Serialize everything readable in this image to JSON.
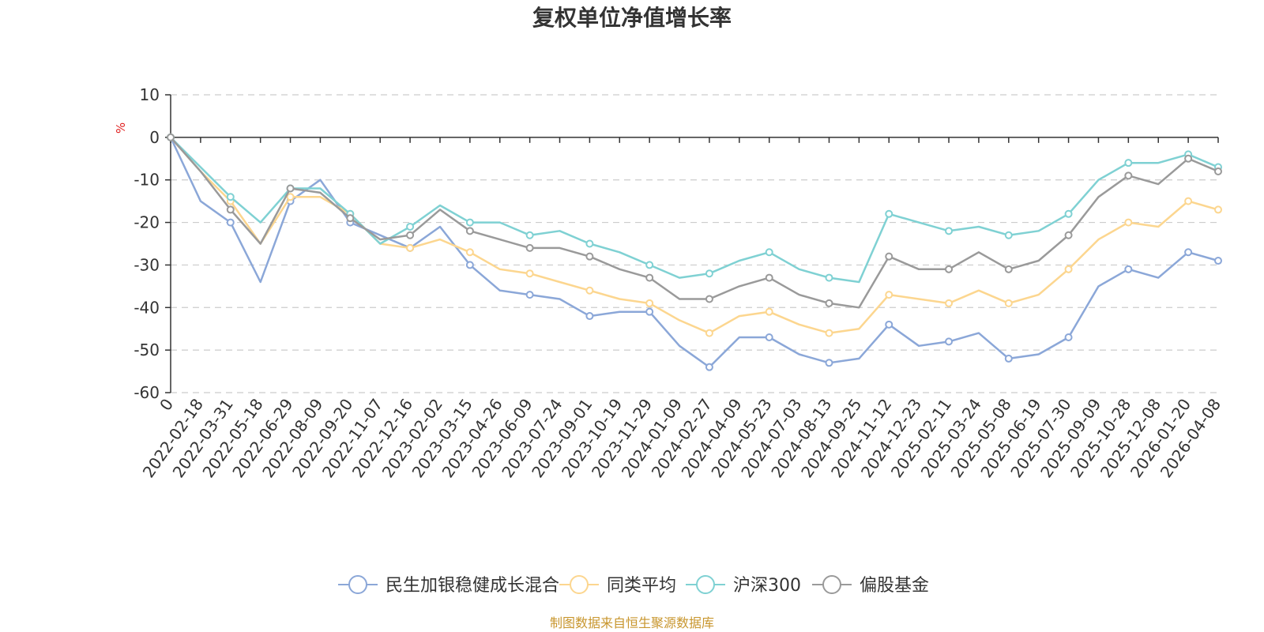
{
  "chart_data": {
    "type": "line",
    "title": "复权单位净值增长率",
    "ylabel": "%",
    "ylim": [
      -60,
      10
    ],
    "yticks": [
      10,
      0,
      -10,
      -20,
      -30,
      -40,
      -50,
      -60
    ],
    "grid": true,
    "legend_position": "bottom",
    "x": [
      "0",
      "2022-02-18",
      "2022-03-31",
      "2022-05-18",
      "2022-06-29",
      "2022-08-09",
      "2022-09-20",
      "2022-11-07",
      "2022-12-16",
      "2023-02-02",
      "2023-03-15",
      "2023-04-26",
      "2023-06-09",
      "2023-07-24",
      "2023-09-01",
      "2023-10-19",
      "2023-11-29",
      "2024-01-09",
      "2024-02-27",
      "2024-04-09",
      "2024-05-23",
      "2024-07-03",
      "2024-08-13",
      "2024-09-25",
      "2024-11-12",
      "2024-12-23",
      "2025-02-11",
      "2025-03-24",
      "2025-05-08",
      "2025-06-19",
      "2025-07-30",
      "2025-09-09",
      "2025-10-28",
      "2025-12-08",
      "2026-01-20",
      "2026-04-08"
    ],
    "series": [
      {
        "name": "民生加银稳健成长混合",
        "color": "#8ba7d8",
        "values": [
          0,
          -15,
          -20,
          -34,
          -15,
          -10,
          -20,
          -23,
          -26,
          -21,
          -30,
          -36,
          -37,
          -38,
          -42,
          -41,
          -41,
          -49,
          -54,
          -47,
          -47,
          -51,
          -53,
          -52,
          -44,
          -49,
          -48,
          -46,
          -52,
          -51,
          -47,
          -35,
          -31,
          -33,
          -27,
          -29
        ]
      },
      {
        "name": "同类平均",
        "color": "#fcd68f",
        "values": [
          0,
          -8,
          -15,
          -25,
          -14,
          -14,
          -18,
          -25,
          -26,
          -24,
          -27,
          -31,
          -32,
          -34,
          -36,
          -38,
          -39,
          -43,
          -46,
          -42,
          -41,
          -44,
          -46,
          -45,
          -37,
          -38,
          -39,
          -36,
          -39,
          -37,
          -31,
          -24,
          -20,
          -21,
          -15,
          -17
        ]
      },
      {
        "name": "沪深300",
        "color": "#7fd1d3",
        "values": [
          0,
          -7,
          -14,
          -20,
          -12,
          -12,
          -18,
          -25,
          -21,
          -16,
          -20,
          -20,
          -23,
          -22,
          -25,
          -27,
          -30,
          -33,
          -32,
          -29,
          -27,
          -31,
          -33,
          -34,
          -18,
          -20,
          -22,
          -21,
          -23,
          -22,
          -18,
          -10,
          -6,
          -6,
          -4,
          -7
        ]
      },
      {
        "name": "偏股基金",
        "color": "#9a9a9a",
        "values": [
          0,
          -8,
          -17,
          -25,
          -12,
          -13,
          -19,
          -24,
          -23,
          -17,
          -22,
          -24,
          -26,
          -26,
          -28,
          -31,
          -33,
          -38,
          -38,
          -35,
          -33,
          -37,
          -39,
          -40,
          -28,
          -31,
          -31,
          -27,
          -31,
          -29,
          -23,
          -14,
          -9,
          -11,
          -5,
          -8
        ]
      }
    ]
  },
  "source": "制图数据来自恒生聚源数据库"
}
